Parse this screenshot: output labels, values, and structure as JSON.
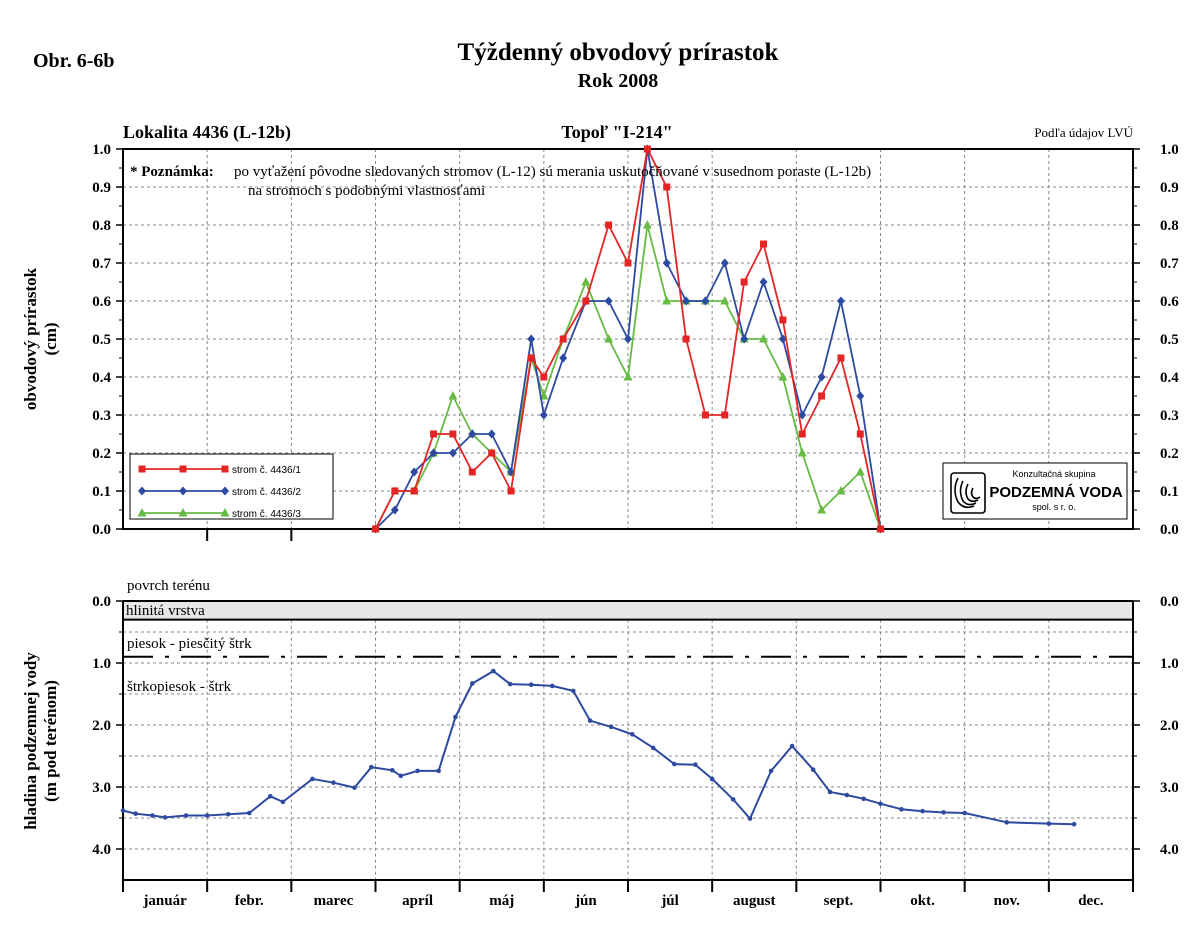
{
  "figure_label": "Obr. 6-6b",
  "title": "Týždenný obvodový prírastok",
  "subtitle": "Rok 2008",
  "colors": {
    "red": "#e52525",
    "blue": "#2e4aa0",
    "green": "#66bb44",
    "layer": "#e6e6e6"
  },
  "chart_data": [
    {
      "type": "line",
      "location": "Lokalita 4436 (L-12b)",
      "tree": "Topoľ \"I-214\"",
      "source": "Podľa údajov LVÚ",
      "ylabel_1": "obvodový prírastok",
      "ylabel_2": "(cm)",
      "ylim": [
        0,
        1.0
      ],
      "yticks": [
        "0.0",
        "0.1",
        "0.2",
        "0.3",
        "0.4",
        "0.5",
        "0.6",
        "0.7",
        "0.8",
        "0.9",
        "1.0"
      ],
      "grid": true,
      "x_unit": "month index (0 = 1 Jan, 12 = 31 Dec)",
      "note_label": "* Poznámka:",
      "note_line1": "po vyťažení pôvodne sledovaných stromov (L-12) sú merania uskutočňované v susednom poraste (L-12b)",
      "note_line2": "na stromoch s podobnými vlastnosťami",
      "legend_position": "bottom-left",
      "series": [
        {
          "name": "strom č. 4436/1",
          "color": "red",
          "marker": "square",
          "points": [
            [
              3.0,
              0.0
            ],
            [
              3.23,
              0.1
            ],
            [
              3.46,
              0.1
            ],
            [
              3.69,
              0.25
            ],
            [
              3.92,
              0.25
            ],
            [
              4.15,
              0.15
            ],
            [
              4.38,
              0.2
            ],
            [
              4.61,
              0.1
            ],
            [
              4.85,
              0.45
            ],
            [
              5.0,
              0.4
            ],
            [
              5.23,
              0.5
            ],
            [
              5.5,
              0.6
            ],
            [
              5.77,
              0.8
            ],
            [
              6.0,
              0.7
            ],
            [
              6.23,
              1.0
            ],
            [
              6.46,
              0.9
            ],
            [
              6.69,
              0.5
            ],
            [
              6.92,
              0.3
            ],
            [
              7.15,
              0.3
            ],
            [
              7.38,
              0.65
            ],
            [
              7.61,
              0.75
            ],
            [
              7.84,
              0.55
            ],
            [
              8.07,
              0.25
            ],
            [
              8.3,
              0.35
            ],
            [
              8.53,
              0.45
            ],
            [
              8.76,
              0.25
            ],
            [
              9.0,
              0.0
            ]
          ]
        },
        {
          "name": "strom č. 4436/2",
          "color": "blue",
          "marker": "diamond",
          "points": [
            [
              3.0,
              0.0
            ],
            [
              3.23,
              0.05
            ],
            [
              3.46,
              0.15
            ],
            [
              3.69,
              0.2
            ],
            [
              3.92,
              0.2
            ],
            [
              4.15,
              0.25
            ],
            [
              4.38,
              0.25
            ],
            [
              4.61,
              0.15
            ],
            [
              4.85,
              0.5
            ],
            [
              5.0,
              0.3
            ],
            [
              5.23,
              0.45
            ],
            [
              5.5,
              0.6
            ],
            [
              5.77,
              0.6
            ],
            [
              6.0,
              0.5
            ],
            [
              6.23,
              1.0
            ],
            [
              6.46,
              0.7
            ],
            [
              6.69,
              0.6
            ],
            [
              6.92,
              0.6
            ],
            [
              7.15,
              0.7
            ],
            [
              7.38,
              0.5
            ],
            [
              7.61,
              0.65
            ],
            [
              7.84,
              0.5
            ],
            [
              8.07,
              0.3
            ],
            [
              8.3,
              0.4
            ],
            [
              8.53,
              0.6
            ],
            [
              8.76,
              0.35
            ],
            [
              9.0,
              0.0
            ]
          ]
        },
        {
          "name": "strom č. 4436/3",
          "color": "green",
          "marker": "triangle",
          "points": [
            [
              3.0,
              0.0
            ],
            [
              3.23,
              0.1
            ],
            [
              3.46,
              0.1
            ],
            [
              3.69,
              0.2
            ],
            [
              3.92,
              0.35
            ],
            [
              4.15,
              0.25
            ],
            [
              4.38,
              0.2
            ],
            [
              4.61,
              0.15
            ],
            [
              4.85,
              0.45
            ],
            [
              5.0,
              0.35
            ],
            [
              5.23,
              0.5
            ],
            [
              5.5,
              0.65
            ],
            [
              5.77,
              0.5
            ],
            [
              6.0,
              0.4
            ],
            [
              6.23,
              0.8
            ],
            [
              6.46,
              0.6
            ],
            [
              6.69,
              0.6
            ],
            [
              6.92,
              0.6
            ],
            [
              7.15,
              0.6
            ],
            [
              7.38,
              0.5
            ],
            [
              7.61,
              0.5
            ],
            [
              7.84,
              0.4
            ],
            [
              8.07,
              0.2
            ],
            [
              8.3,
              0.05
            ],
            [
              8.53,
              0.1
            ],
            [
              8.76,
              0.15
            ],
            [
              9.0,
              0.0
            ]
          ]
        }
      ]
    },
    {
      "type": "line",
      "ylabel_1": "hladina podzemnej vody",
      "ylabel_2": "(m pod terénom)",
      "ylim": [
        4.5,
        0.0
      ],
      "yticks": [
        "0.0",
        "1.0",
        "2.0",
        "3.0",
        "4.0"
      ],
      "y_inverted": true,
      "grid": true,
      "months": [
        "január",
        "febr.",
        "marec",
        "apríl",
        "máj",
        "jún",
        "júl",
        "august",
        "sept.",
        "okt.",
        "nov.",
        "dec."
      ],
      "surface_label": "povrch terénu",
      "layer1_label": "hlinitá vrstva",
      "layer1_bottom": 0.3,
      "layer2_label": "piesok - piesčitý štrk",
      "layer2_boundary": 0.9,
      "layer3_label": "štrkopiesok - štrk",
      "series": [
        {
          "name": "",
          "color": "blue",
          "marker": "dot",
          "points": [
            [
              0.0,
              3.38
            ],
            [
              0.15,
              3.43
            ],
            [
              0.35,
              3.46
            ],
            [
              0.5,
              3.49
            ],
            [
              0.75,
              3.46
            ],
            [
              1.0,
              3.46
            ],
            [
              1.25,
              3.44
            ],
            [
              1.5,
              3.42
            ],
            [
              1.75,
              3.15
            ],
            [
              1.9,
              3.24
            ],
            [
              2.25,
              2.87
            ],
            [
              2.5,
              2.93
            ],
            [
              2.75,
              3.01
            ],
            [
              2.95,
              2.68
            ],
            [
              3.2,
              2.73
            ],
            [
              3.3,
              2.82
            ],
            [
              3.5,
              2.74
            ],
            [
              3.75,
              2.74
            ],
            [
              3.95,
              1.87
            ],
            [
              4.15,
              1.33
            ],
            [
              4.4,
              1.13
            ],
            [
              4.6,
              1.34
            ],
            [
              4.85,
              1.35
            ],
            [
              5.1,
              1.37
            ],
            [
              5.35,
              1.45
            ],
            [
              5.55,
              1.93
            ],
            [
              5.8,
              2.03
            ],
            [
              6.05,
              2.15
            ],
            [
              6.3,
              2.37
            ],
            [
              6.55,
              2.63
            ],
            [
              6.8,
              2.64
            ],
            [
              7.0,
              2.87
            ],
            [
              7.25,
              3.2
            ],
            [
              7.45,
              3.51
            ],
            [
              7.7,
              2.74
            ],
            [
              7.95,
              2.34
            ],
            [
              8.2,
              2.72
            ],
            [
              8.4,
              3.08
            ],
            [
              8.6,
              3.13
            ],
            [
              8.8,
              3.19
            ],
            [
              9.0,
              3.27
            ],
            [
              9.25,
              3.36
            ],
            [
              9.5,
              3.39
            ],
            [
              9.75,
              3.41
            ],
            [
              10.0,
              3.42
            ],
            [
              10.5,
              3.57
            ],
            [
              11.0,
              3.59
            ],
            [
              11.3,
              3.6
            ]
          ]
        }
      ]
    }
  ],
  "logo": {
    "line1": "Konzultačná skupina",
    "line2": "PODZEMNÁ VODA",
    "line3": "spol. s r. o."
  }
}
